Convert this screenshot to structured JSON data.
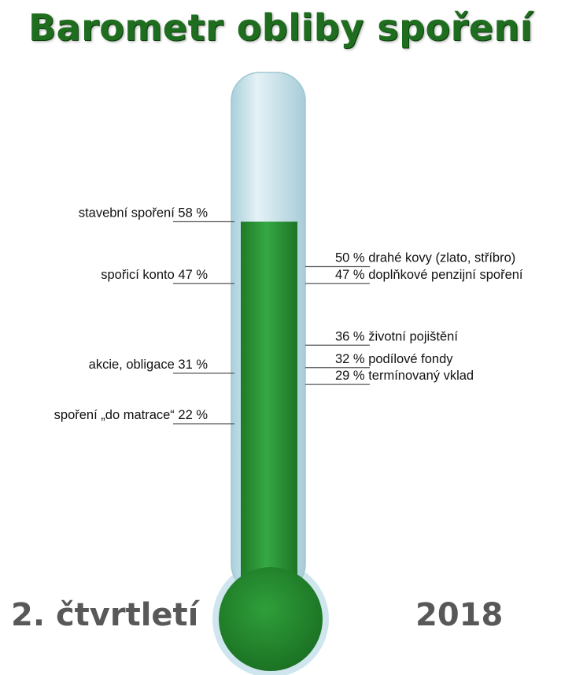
{
  "title": "Barometr obliby spoření",
  "period": {
    "quarter": "2. čtvrtletí",
    "year": "2018"
  },
  "colors": {
    "title": "#1f6e1f",
    "fill": "#2e9a3a",
    "tube": "#cfe6ee"
  },
  "chart_data": {
    "type": "thermometer",
    "title": "Barometr obliby spoření",
    "unit": "%",
    "fill_level": 58,
    "left_items": [
      {
        "label": "stavební spoření",
        "value": 58,
        "value_text": "58 %"
      },
      {
        "label": "spořicí konto",
        "value": 47,
        "value_text": "47 %"
      },
      {
        "label": "akcie, obligace",
        "value": 31,
        "value_text": "31 %"
      },
      {
        "label": "spoření „do matrace“",
        "value": 22,
        "value_text": "22 %"
      }
    ],
    "right_items": [
      {
        "label": "drahé kovy (zlato, stříbro)",
        "value": 50,
        "value_text": "50 %"
      },
      {
        "label": "doplňkové penzijní spoření",
        "value": 47,
        "value_text": "47 %"
      },
      {
        "label": "životní pojištění",
        "value": 36,
        "value_text": "36 %"
      },
      {
        "label": "podílové fondy",
        "value": 32,
        "value_text": "32 %"
      },
      {
        "label": "termínovaný vklad",
        "value": 29,
        "value_text": "29 %"
      }
    ]
  }
}
